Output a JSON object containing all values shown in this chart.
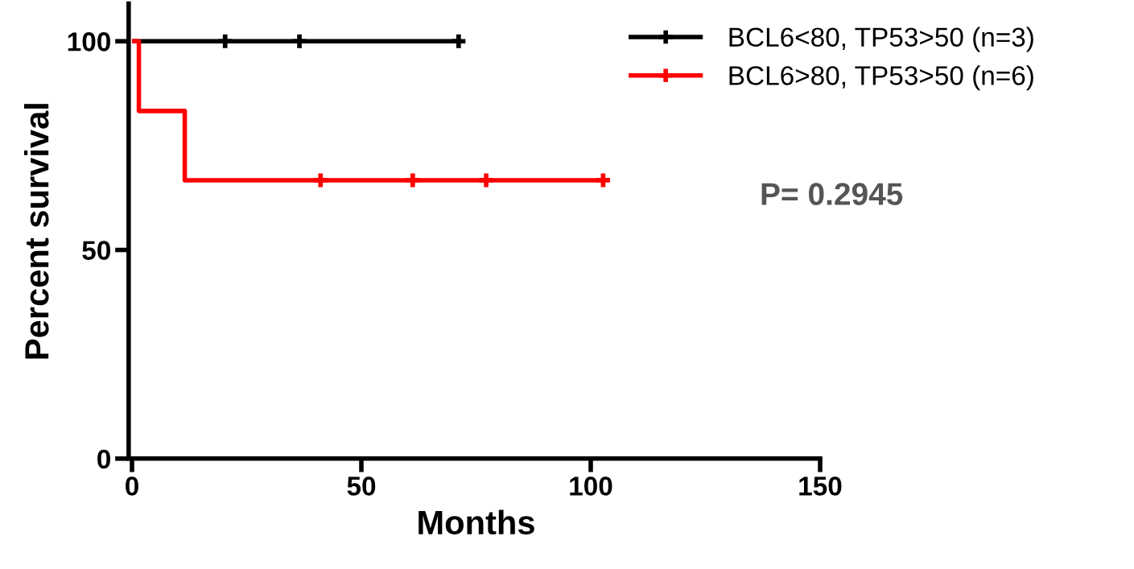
{
  "chart_data": {
    "type": "step",
    "xlabel": "Months",
    "ylabel": "Percent survival",
    "xlim": [
      0,
      150
    ],
    "xticks": [
      0,
      50,
      100,
      150
    ],
    "ylim": [
      0,
      109
    ],
    "yticks": [
      0,
      50,
      100
    ],
    "series": [
      {
        "name": "BCL6<80, TP53>50 (n=3)",
        "color": "#000000",
        "x": [
          0,
          20.3,
          36.5,
          71.2
        ],
        "values": [
          100,
          100,
          100,
          100
        ]
      },
      {
        "name": "BCL6>80, TP53>50 (n=6)",
        "color": "#ff0000",
        "x": [
          0,
          1.5,
          11.5,
          41.1,
          61.2,
          77.2,
          102.7
        ],
        "values": [
          100,
          83.3,
          66.7,
          66.7,
          66.7,
          66.7,
          66.7
        ]
      },
      {
        "type": "scatter",
        "color": "#000000",
        "marker": "cross",
        "x": [
          20.3,
          36.5,
          71.2
        ],
        "values": [
          100,
          100,
          100
        ]
      },
      {
        "type": "scatter",
        "color": "#ff0000",
        "marker": "cross",
        "x": [
          41.1,
          61.2,
          77.2,
          102.7
        ],
        "values": [
          66.7,
          66.7,
          66.7,
          66.7
        ]
      }
    ],
    "annotations": [
      "P= 0.2945"
    ],
    "legend": "top right",
    "grid": false
  }
}
